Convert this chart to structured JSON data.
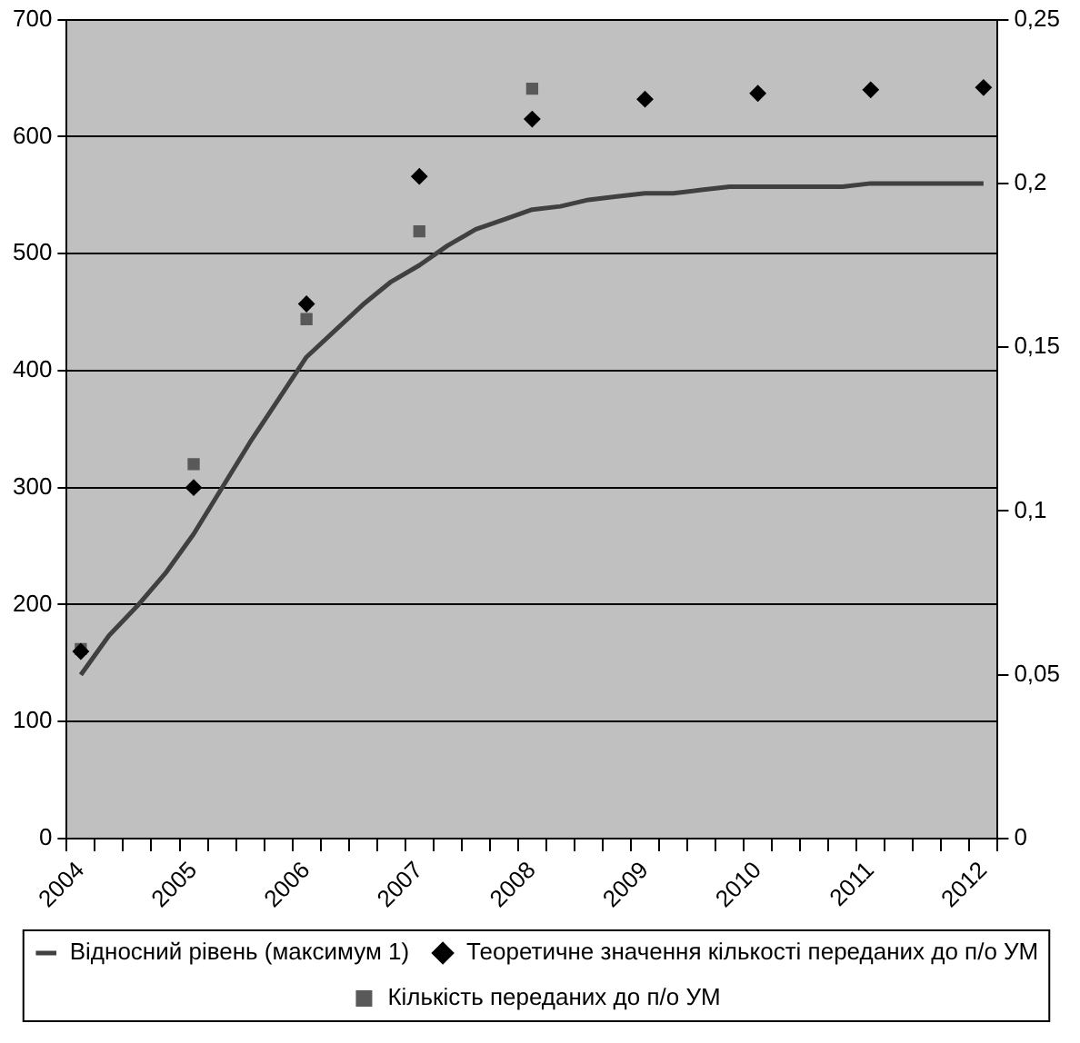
{
  "chart_data": {
    "type": "line",
    "categories": [
      "2004",
      null,
      null,
      null,
      "2005",
      null,
      null,
      null,
      "2006",
      null,
      null,
      null,
      "2007",
      null,
      null,
      null,
      "2008",
      null,
      null,
      null,
      "2009",
      null,
      null,
      null,
      "2010",
      null,
      null,
      null,
      "2011",
      null,
      null,
      null,
      "2012"
    ],
    "series": [
      {
        "name": "Кількість переданих до п/о УМ",
        "type": "scatter",
        "marker": "square",
        "color": "#595959",
        "values": [
          162,
          null,
          null,
          null,
          320,
          null,
          null,
          null,
          444,
          null,
          null,
          null,
          519,
          null,
          null,
          null,
          641,
          null,
          null,
          null,
          null,
          null,
          null,
          null,
          null,
          null,
          null,
          null,
          null,
          null,
          null,
          null,
          null
        ]
      },
      {
        "name": "Теоретичне значення кількості переданих до п/о УМ",
        "type": "scatter",
        "marker": "diamond",
        "color": "#000000",
        "values": [
          160,
          null,
          null,
          null,
          300,
          null,
          null,
          null,
          457,
          null,
          null,
          null,
          566,
          null,
          null,
          null,
          615,
          null,
          null,
          null,
          632,
          null,
          null,
          null,
          637,
          null,
          null,
          null,
          640,
          null,
          null,
          null,
          642
        ]
      },
      {
        "name": "Відносний рівень (максимум 1)",
        "type": "line",
        "marker": "none",
        "axis": "y2",
        "color": "#404040",
        "values": [
          0.05,
          0.062,
          0.071,
          0.081,
          0.093,
          0.107,
          0.121,
          0.134,
          0.147,
          0.155,
          0.163,
          0.17,
          0.175,
          0.181,
          0.186,
          0.189,
          0.192,
          0.193,
          0.195,
          0.196,
          0.197,
          0.197,
          0.198,
          0.199,
          0.199,
          0.199,
          0.199,
          0.199,
          0.2,
          0.2,
          0.2,
          0.2,
          0.2
        ]
      }
    ],
    "ylim": [
      0,
      700
    ],
    "yticks": [
      0,
      100,
      200,
      300,
      400,
      500,
      600,
      700
    ],
    "y2lim": [
      0,
      0.25
    ],
    "y2ticks": [
      {
        "value": 0,
        "label": "0"
      },
      {
        "value": 0.05,
        "label": "0,05"
      },
      {
        "value": 0.1,
        "label": "0,1"
      },
      {
        "value": 0.15,
        "label": "0,15"
      },
      {
        "value": 0.2,
        "label": "0,2"
      },
      {
        "value": 0.25,
        "label": "0,25"
      }
    ],
    "grid": "y",
    "legend": "bottom"
  }
}
